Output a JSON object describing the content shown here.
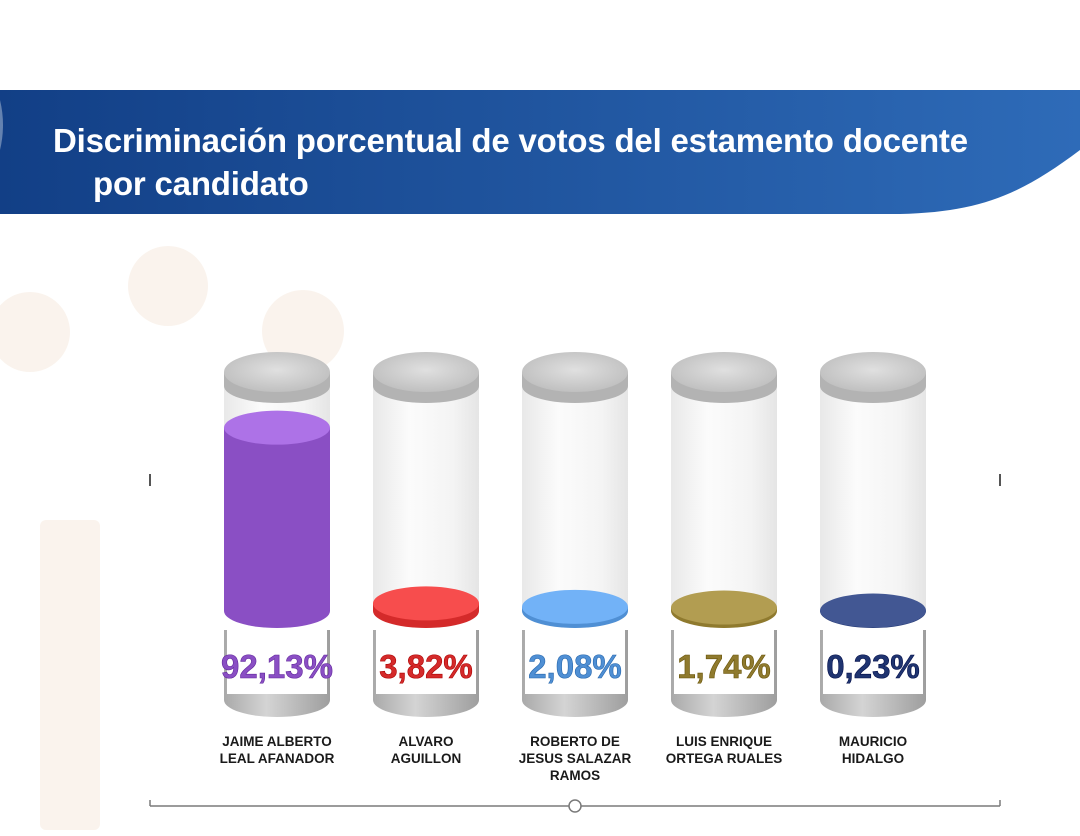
{
  "header": {
    "title_line_1": "Discriminación porcentual de votos del estamento docente",
    "title_line_2": "por candidato"
  },
  "colors": {
    "banner_dark": "#123f86",
    "banner_light": "#2e6bb8",
    "cap_gray": "#c6c6c6"
  },
  "chart_data": {
    "type": "bar",
    "style": "3d-cylinder",
    "title": "Discriminación porcentual de votos del estamento docente por candidato",
    "unit": "%",
    "ylim": [
      0,
      100
    ],
    "grid": false,
    "legend": "none",
    "categories": [
      [
        "JAIME ALBERTO",
        "LEAL AFANADOR"
      ],
      [
        "ALVARO",
        "AGUILLON"
      ],
      [
        "ROBERTO DE",
        "JESUS SALAZAR",
        "RAMOS"
      ],
      [
        "LUIS ENRIQUE",
        "ORTEGA RUALES"
      ],
      [
        "MAURICIO",
        "HIDALGO"
      ]
    ],
    "values": [
      92.13,
      3.82,
      2.08,
      1.74,
      0.23
    ],
    "value_labels": [
      "92,13%",
      "3,82%",
      "2,08%",
      "1,74%",
      "0,23%"
    ],
    "colors": [
      "#8a4fc4",
      "#d42a2a",
      "#4f8fd4",
      "#8f7a2e",
      "#1f3470"
    ]
  }
}
